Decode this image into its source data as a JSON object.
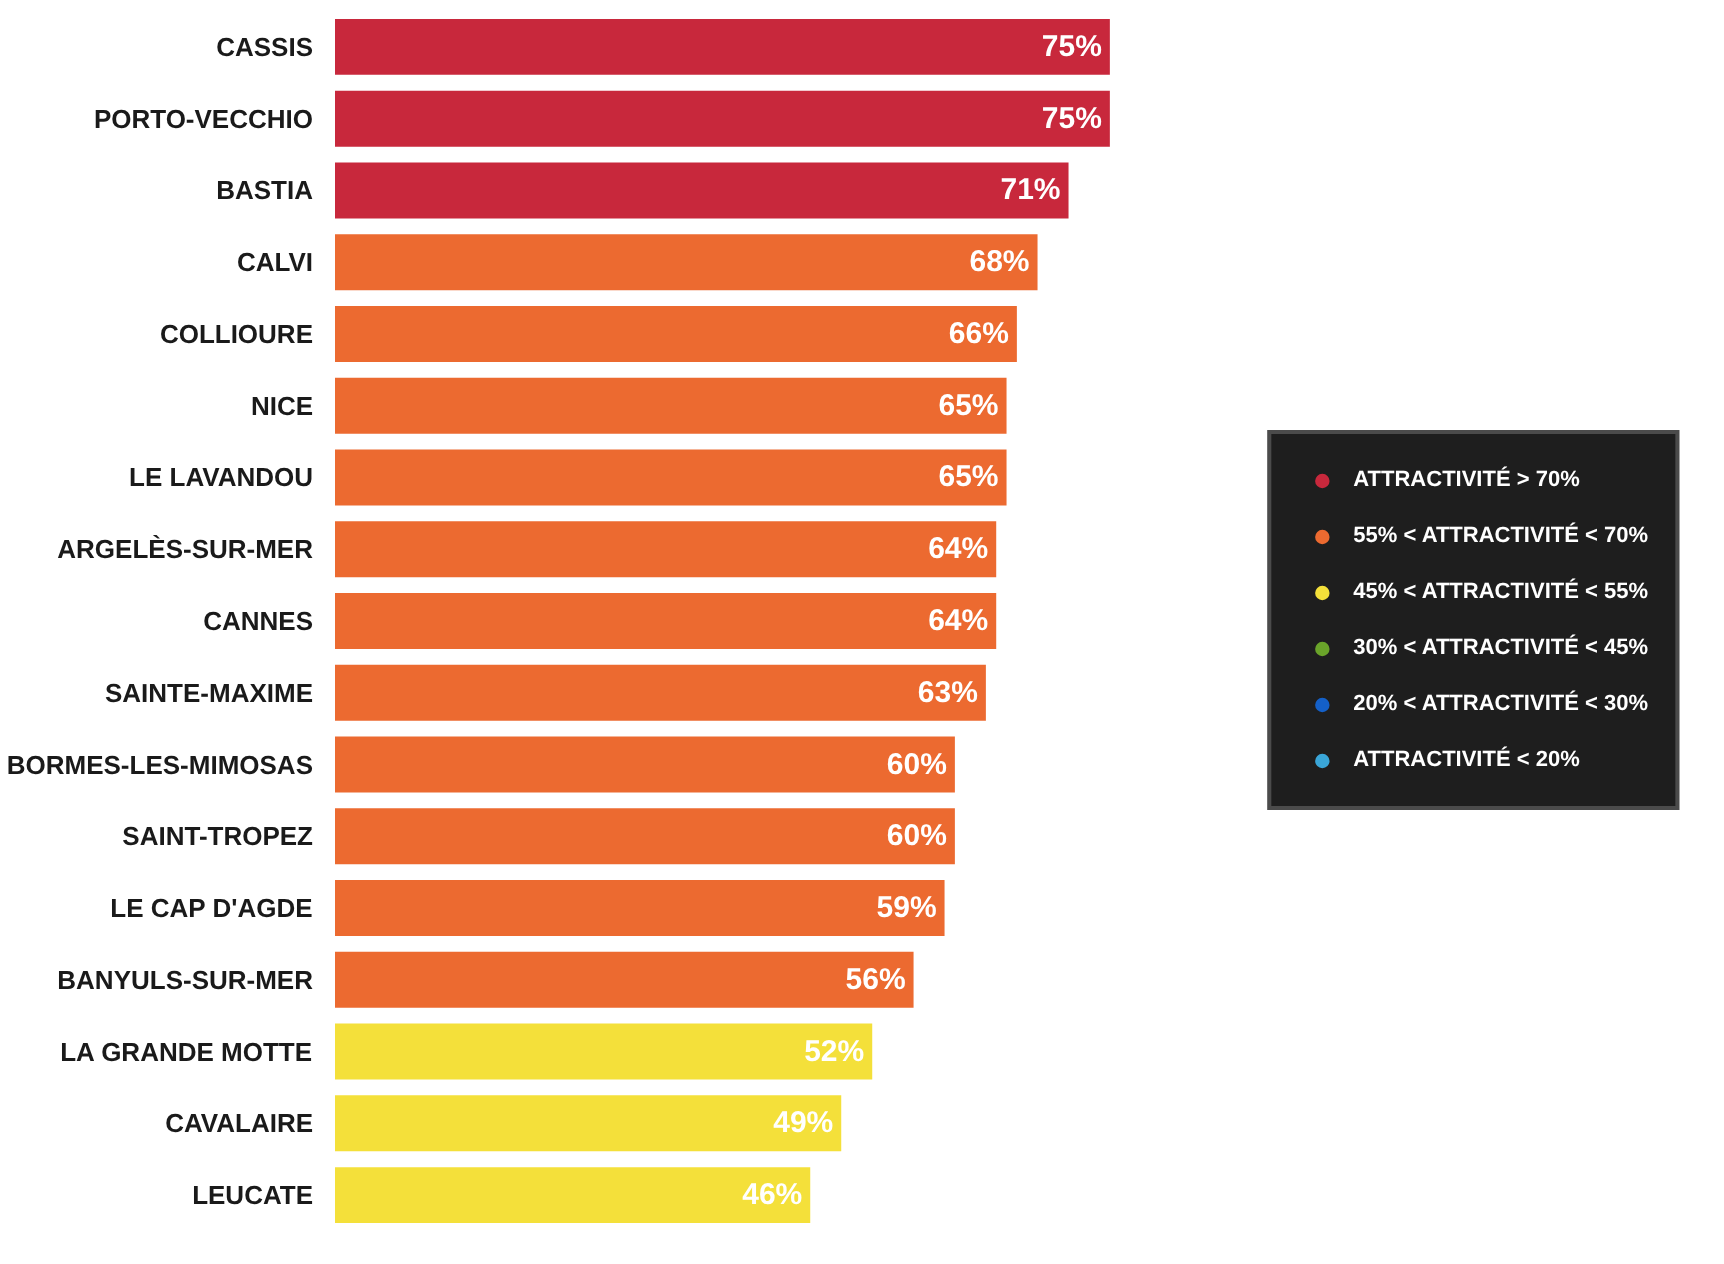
{
  "chart_data": {
    "type": "bar",
    "orientation": "horizontal",
    "stacked": true,
    "legend": "right",
    "categories": [
      "CASSIS",
      "PORTO-VECCHIO",
      "BASTIA",
      "CALVI",
      "COLLIOURE",
      "NICE",
      "LE LAVANDOU",
      "ARGELÈS-SUR-MER",
      "CANNES",
      "SAINTE-MAXIME",
      "BORMES-LES-MIMOSAS",
      "SAINT-TROPEZ",
      "LE CAP D'AGDE",
      "BANYULS-SUR-MER",
      "LA GRANDE MOTTE",
      "CAVALAIRE",
      "LEUCATE"
    ],
    "series": [
      {
        "name": "ATTRACTIVITÉ > 70%",
        "color": "#c8283c",
        "values": [
          75,
          75,
          71,
          null,
          null,
          null,
          null,
          null,
          null,
          null,
          null,
          null,
          null,
          null,
          null,
          null,
          null
        ],
        "value_labels": [
          "75%",
          "75%",
          "71%",
          null,
          null,
          null,
          null,
          null,
          null,
          null,
          null,
          null,
          null,
          null,
          null,
          null,
          null
        ]
      },
      {
        "name": "55% < ATTRACTIVITÉ < 70%",
        "color": "#ec6a30",
        "values": [
          null,
          null,
          null,
          68,
          66,
          65,
          65,
          64,
          64,
          63,
          60,
          60,
          59,
          56,
          null,
          null,
          null
        ],
        "value_labels": [
          null,
          null,
          null,
          "68%",
          "66%",
          "65%",
          "65%",
          "64%",
          "64%",
          "63%",
          "60%",
          "60%",
          "59%",
          "56%",
          null,
          null,
          null
        ]
      },
      {
        "name": "45% < ATTRACTIVITÉ < 55%",
        "color": "#f4e03a",
        "values": [
          null,
          null,
          null,
          null,
          null,
          null,
          null,
          null,
          null,
          null,
          null,
          null,
          null,
          null,
          52,
          49,
          46
        ],
        "value_labels": [
          null,
          null,
          null,
          null,
          null,
          null,
          null,
          null,
          null,
          null,
          null,
          null,
          null,
          null,
          "52%",
          "49%",
          "46%"
        ]
      },
      {
        "name": "30% < ATTRACTIVITÉ < 45%",
        "color": "#6aa42a",
        "values": [
          null,
          null,
          null,
          null,
          null,
          null,
          null,
          null,
          null,
          null,
          null,
          null,
          null,
          null,
          null,
          null,
          null
        ]
      },
      {
        "name": "20% < ATTRACTIVITÉ < 30%",
        "color": "#1460c8",
        "values": [
          null,
          null,
          null,
          null,
          null,
          null,
          null,
          null,
          null,
          null,
          null,
          null,
          null,
          null,
          null,
          null,
          null
        ]
      },
      {
        "name": "ATTRACTIVITÉ < 20%",
        "color": "#3aa6d8",
        "values": [
          null,
          null,
          null,
          null,
          null,
          null,
          null,
          null,
          null,
          null,
          null,
          null,
          null,
          null,
          null,
          null,
          null
        ]
      }
    ]
  }
}
